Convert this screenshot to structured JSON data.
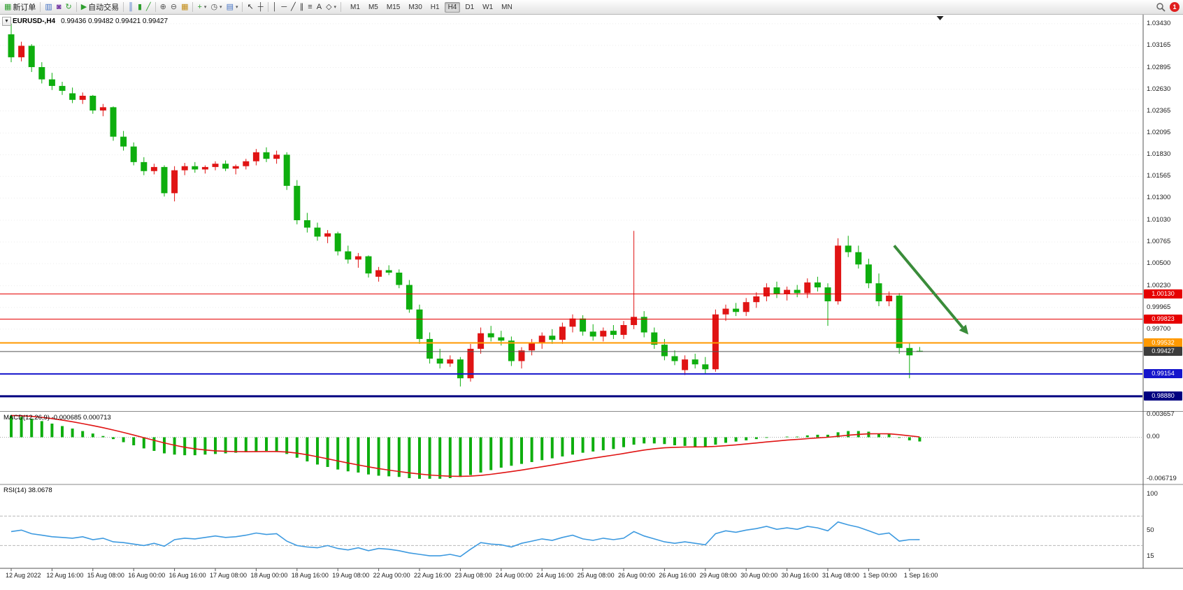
{
  "toolbar": {
    "items": [
      {
        "name": "new-order-button",
        "glyph": "▦",
        "color": "#2e9e2e",
        "label": "新订单"
      },
      {
        "separator": true
      },
      {
        "name": "charts-window-icon",
        "glyph": "▥",
        "color": "#4472c4"
      },
      {
        "name": "profile-icon",
        "glyph": "◙",
        "color": "#7030a0"
      },
      {
        "name": "refresh-icon",
        "glyph": "↻",
        "color": "#2e9e2e"
      },
      {
        "separator": true
      },
      {
        "name": "autotrade-button",
        "glyph": "▶",
        "color": "#2e9e2e",
        "label": "自动交易"
      },
      {
        "separator": true
      },
      {
        "name": "bar-chart-icon",
        "glyph": "║",
        "color": "#4472c4"
      },
      {
        "name": "candlestick-icon",
        "glyph": "▮",
        "color": "#2e9e2e"
      },
      {
        "name": "line-chart-icon",
        "glyph": "╱",
        "color": "#2e9e2e"
      },
      {
        "separator": true
      },
      {
        "name": "zoom-in-icon",
        "glyph": "⊕",
        "color": "#555555"
      },
      {
        "name": "zoom-out-icon",
        "glyph": "⊖",
        "color": "#555555"
      },
      {
        "name": "tile-windows-icon",
        "glyph": "▦",
        "color": "#c28a10"
      },
      {
        "separator": true
      },
      {
        "name": "indicators-icon",
        "glyph": "+",
        "color": "#2e9e2e",
        "dropdown": true
      },
      {
        "name": "periods-icon",
        "glyph": "◷",
        "color": "#555555",
        "dropdown": true
      },
      {
        "name": "templates-icon",
        "glyph": "▤",
        "color": "#4472c4",
        "dropdown": true
      },
      {
        "separator": true
      },
      {
        "name": "cursor-icon",
        "glyph": "↖",
        "color": "#333333"
      },
      {
        "name": "crosshair-icon",
        "glyph": "┼",
        "color": "#333333"
      },
      {
        "separator": true
      },
      {
        "name": "vertical-line-icon",
        "glyph": "│",
        "color": "#333333"
      },
      {
        "name": "horizontal-line-icon",
        "glyph": "─",
        "color": "#333333"
      },
      {
        "name": "trendline-icon",
        "glyph": "╱",
        "color": "#333333"
      },
      {
        "name": "channel-icon",
        "glyph": "∥",
        "color": "#333333"
      },
      {
        "name": "fibonacci-icon",
        "glyph": "≡",
        "color": "#333333"
      },
      {
        "name": "text-icon",
        "glyph": "A",
        "color": "#333333"
      },
      {
        "name": "arrows-icon",
        "glyph": "◇",
        "color": "#333333",
        "dropdown": true
      },
      {
        "separator": true
      }
    ],
    "timeframes": [
      "M1",
      "M5",
      "M15",
      "M30",
      "H1",
      "H4",
      "D1",
      "W1",
      "MN"
    ],
    "active_timeframe": "H4",
    "notification_count": "1"
  },
  "chart": {
    "symbol_label": "EURUSD-,H4",
    "quote": "0.99436 0.99482 0.99421 0.99427",
    "collapse_glyph": "▼"
  },
  "chart_data": {
    "type": "candlestick",
    "symbol": "EURUSD-",
    "timeframe": "H4",
    "bull_color": "#e01414",
    "bear_color": "#0eae0e",
    "price_range": [
      0.987,
      1.0354
    ],
    "price_axis_labels": [
      "1.03430",
      "1.03165",
      "1.02895",
      "1.02630",
      "1.02365",
      "1.02095",
      "1.01830",
      "1.01565",
      "1.01300",
      "1.01030",
      "1.00765",
      "1.00500",
      "1.00230",
      "0.99965",
      "0.99700"
    ],
    "time_labels": [
      "12 Aug 2022",
      "12 Aug 16:00",
      "15 Aug 08:00",
      "16 Aug 00:00",
      "16 Aug 16:00",
      "17 Aug 08:00",
      "18 Aug 00:00",
      "18 Aug 16:00",
      "19 Aug 08:00",
      "22 Aug 00:00",
      "22 Aug 16:00",
      "23 Aug 08:00",
      "24 Aug 00:00",
      "24 Aug 16:00",
      "25 Aug 08:00",
      "26 Aug 00:00",
      "26 Aug 16:00",
      "29 Aug 08:00",
      "30 Aug 00:00",
      "30 Aug 16:00",
      "31 Aug 08:00",
      "1 Sep 00:00",
      "1 Sep 16:00"
    ],
    "bars_per_label": 4,
    "ohlc": [
      [
        1.033,
        1.0343,
        1.0296,
        1.0302
      ],
      [
        1.0302,
        1.0321,
        1.0297,
        1.0316
      ],
      [
        1.0316,
        1.0318,
        1.0284,
        1.029
      ],
      [
        1.029,
        1.0296,
        1.027,
        1.0275
      ],
      [
        1.0275,
        1.0283,
        1.0262,
        1.0267
      ],
      [
        1.0267,
        1.0272,
        1.0256,
        1.0261
      ],
      [
        1.0258,
        1.0265,
        1.0246,
        1.025
      ],
      [
        1.025,
        1.0259,
        1.0245,
        1.0255
      ],
      [
        1.0255,
        1.0256,
        1.0233,
        1.0237
      ],
      [
        1.0237,
        1.0245,
        1.023,
        1.0241
      ],
      [
        1.0241,
        1.0242,
        1.02,
        1.0205
      ],
      [
        1.0205,
        1.0212,
        1.0188,
        1.0193
      ],
      [
        1.0193,
        1.0198,
        1.017,
        1.0174
      ],
      [
        1.0174,
        1.018,
        1.0158,
        1.0163
      ],
      [
        1.0163,
        1.0172,
        1.0159,
        1.0168
      ],
      [
        1.0168,
        1.017,
        1.0132,
        1.0136
      ],
      [
        1.0136,
        1.0169,
        1.0126,
        1.0164
      ],
      [
        1.0164,
        1.0173,
        1.0158,
        1.0169
      ],
      [
        1.0169,
        1.0174,
        1.0161,
        1.0165
      ],
      [
        1.0165,
        1.017,
        1.016,
        1.0168
      ],
      [
        1.0168,
        1.0175,
        1.0164,
        1.0172
      ],
      [
        1.0172,
        1.0176,
        1.0163,
        1.0166
      ],
      [
        1.0166,
        1.0171,
        1.0159,
        1.0169
      ],
      [
        1.0169,
        1.0178,
        1.0165,
        1.0175
      ],
      [
        1.0175,
        1.019,
        1.017,
        1.0186
      ],
      [
        1.0186,
        1.0192,
        1.0174,
        1.0178
      ],
      [
        1.0178,
        1.0188,
        1.0172,
        1.0183
      ],
      [
        1.0183,
        1.0186,
        1.014,
        1.0145
      ],
      [
        1.0145,
        1.0152,
        1.0098,
        1.0103
      ],
      [
        1.0103,
        1.0112,
        1.0088,
        1.0094
      ],
      [
        1.0094,
        1.01,
        1.0078,
        1.0083
      ],
      [
        1.0083,
        1.0091,
        1.0075,
        1.0087
      ],
      [
        1.0087,
        1.0089,
        1.006,
        1.0065
      ],
      [
        1.0065,
        1.0072,
        1.005,
        1.0055
      ],
      [
        1.0055,
        1.0063,
        1.0045,
        1.0059
      ],
      [
        1.0059,
        1.006,
        1.0033,
        1.0038
      ],
      [
        1.0034,
        1.0046,
        1.0028,
        1.0042
      ],
      [
        1.0042,
        1.0048,
        1.0036,
        1.0039
      ],
      [
        1.0039,
        1.0043,
        1.002,
        1.0024
      ],
      [
        1.0024,
        1.003,
        0.999,
        0.9994
      ],
      [
        0.9994,
        1.0,
        0.9952,
        0.9958
      ],
      [
        0.9958,
        0.9966,
        0.9928,
        0.9934
      ],
      [
        0.9934,
        0.9946,
        0.9922,
        0.9928
      ],
      [
        0.9928,
        0.9938,
        0.9924,
        0.9933
      ],
      [
        0.9933,
        0.9936,
        0.99,
        0.991
      ],
      [
        0.991,
        0.9952,
        0.9906,
        0.9946
      ],
      [
        0.9946,
        0.9972,
        0.994,
        0.9965
      ],
      [
        0.9965,
        0.9974,
        0.9955,
        0.996
      ],
      [
        0.996,
        0.9968,
        0.995,
        0.9956
      ],
      [
        0.9956,
        0.9961,
        0.9925,
        0.9931
      ],
      [
        0.9931,
        0.9948,
        0.9922,
        0.9944
      ],
      [
        0.9944,
        0.9958,
        0.9938,
        0.9953
      ],
      [
        0.9953,
        0.9966,
        0.9946,
        0.9962
      ],
      [
        0.9962,
        0.997,
        0.9952,
        0.9957
      ],
      [
        0.9957,
        0.9978,
        0.9952,
        0.9973
      ],
      [
        0.9973,
        0.9988,
        0.9966,
        0.9983
      ],
      [
        0.9983,
        0.9987,
        0.9962,
        0.9967
      ],
      [
        0.9967,
        0.9976,
        0.9956,
        0.9961
      ],
      [
        0.9961,
        0.9972,
        0.9955,
        0.9968
      ],
      [
        0.9968,
        0.9975,
        0.9958,
        0.9963
      ],
      [
        0.9963,
        0.998,
        0.9958,
        0.9975
      ],
      [
        0.9975,
        1.009,
        0.997,
        0.9985
      ],
      [
        0.9985,
        0.9992,
        0.996,
        0.9966
      ],
      [
        0.9966,
        0.9972,
        0.9946,
        0.9951
      ],
      [
        0.9951,
        0.9958,
        0.9932,
        0.9937
      ],
      [
        0.9937,
        0.9944,
        0.9926,
        0.9931
      ],
      [
        0.992,
        0.9938,
        0.9914,
        0.9933
      ],
      [
        0.9933,
        0.994,
        0.9922,
        0.9927
      ],
      [
        0.9927,
        0.9936,
        0.9916,
        0.9921
      ],
      [
        0.9921,
        0.9994,
        0.9918,
        0.9988
      ],
      [
        0.9988,
        1.0,
        0.998,
        0.9995
      ],
      [
        0.9995,
        1.0002,
        0.9986,
        0.9991
      ],
      [
        0.9991,
        1.0008,
        0.9986,
        1.0003
      ],
      [
        1.0003,
        1.0015,
        0.9996,
        1.001
      ],
      [
        1.001,
        1.0026,
        1.0004,
        1.0021
      ],
      [
        1.0021,
        1.0028,
        1.0008,
        1.0013
      ],
      [
        1.0013,
        1.0022,
        1.0005,
        1.0018
      ],
      [
        1.0018,
        1.0024,
        1.0009,
        1.0014
      ],
      [
        1.0014,
        1.0032,
        1.0008,
        1.0027
      ],
      [
        1.0027,
        1.0034,
        1.0016,
        1.0021
      ],
      [
        1.0021,
        1.0026,
        0.9974,
        1.0004
      ],
      [
        1.0004,
        1.0081,
        1.0,
        1.0072
      ],
      [
        1.0072,
        1.0084,
        1.0058,
        1.0064
      ],
      [
        1.0064,
        1.0072,
        1.0044,
        1.0049
      ],
      [
        1.0049,
        1.0056,
        1.002,
        1.0026
      ],
      [
        1.0026,
        1.0038,
        0.9998,
        1.0004
      ],
      [
        1.0004,
        1.0016,
        0.9998,
        1.0011
      ],
      [
        1.0011,
        1.0014,
        0.994,
        0.9947
      ],
      [
        0.9947,
        0.9953,
        0.991,
        0.9938
      ],
      [
        0.99436,
        0.99482,
        0.99421,
        0.99427
      ]
    ],
    "hlines": [
      {
        "price": 1.0013,
        "label": "1.00130",
        "color": "#e60000",
        "width": 1
      },
      {
        "price": 0.99823,
        "label": "0.99823",
        "color": "#e60000",
        "width": 1
      },
      {
        "price": 0.99532,
        "label": "0.99532",
        "color": "#ff9900",
        "width": 2
      },
      {
        "price": 0.99154,
        "label": "0.99154",
        "color": "#1515cc",
        "width": 2
      },
      {
        "price": 0.9888,
        "label": "0.98880",
        "color": "#000080",
        "width": 3
      }
    ],
    "current_price": {
      "price": 0.99427,
      "label": "0.99427",
      "badge_color": "#3c3c3c",
      "line_color": "#555555"
    },
    "indicators": {
      "macd": {
        "label": "MACD(12,26,9) -0.000685 0.000713",
        "axis": [
          "0.003657",
          "0.00",
          "-0.006719"
        ],
        "range": [
          -0.0075,
          0.004
        ],
        "hist_color": "#0eae0e",
        "signal_color": "#e01414",
        "values": [
          0.0035,
          0.0033,
          0.003,
          0.0026,
          0.0022,
          0.0018,
          0.0014,
          0.001,
          0.0006,
          0.0002,
          -0.0003,
          -0.0008,
          -0.0013,
          -0.0018,
          -0.0022,
          -0.0026,
          -0.0028,
          -0.0029,
          -0.0029,
          -0.0028,
          -0.0027,
          -0.0026,
          -0.0025,
          -0.0024,
          -0.0023,
          -0.0022,
          -0.0023,
          -0.0027,
          -0.0033,
          -0.0039,
          -0.0044,
          -0.0048,
          -0.0052,
          -0.0055,
          -0.0057,
          -0.006,
          -0.0062,
          -0.0063,
          -0.0064,
          -0.0066,
          -0.0067,
          -0.0067,
          -0.0067,
          -0.0066,
          -0.0064,
          -0.0061,
          -0.0057,
          -0.0053,
          -0.0049,
          -0.0046,
          -0.0043,
          -0.004,
          -0.0037,
          -0.0034,
          -0.0031,
          -0.0028,
          -0.0025,
          -0.0023,
          -0.0021,
          -0.0019,
          -0.0016,
          -0.0012,
          -0.001,
          -0.001,
          -0.0011,
          -0.0013,
          -0.0014,
          -0.0015,
          -0.0015,
          -0.0012,
          -0.0009,
          -0.0007,
          -0.0005,
          -0.0003,
          -0.0001,
          0.0,
          0.0001,
          0.0001,
          0.0003,
          0.0004,
          0.0004,
          0.0008,
          0.001,
          0.001,
          0.0009,
          0.0006,
          0.0005,
          -0.0001,
          -0.0005,
          -0.000685
        ]
      },
      "rsi": {
        "label": "RSI(14) 38.0678",
        "axis": [
          "100",
          "50",
          "15"
        ],
        "range": [
          0,
          112
        ],
        "levels": [
          70,
          30
        ],
        "color": "#3d9ae0",
        "values": [
          49,
          51,
          46,
          44,
          42,
          41,
          40,
          42,
          38,
          40,
          35,
          34,
          32,
          30,
          33,
          29,
          38,
          40,
          39,
          41,
          43,
          41,
          42,
          44,
          47,
          45,
          46,
          36,
          30,
          28,
          27,
          30,
          26,
          24,
          27,
          23,
          26,
          25,
          23,
          20,
          18,
          16,
          16,
          18,
          15,
          25,
          34,
          32,
          31,
          28,
          33,
          36,
          39,
          37,
          41,
          44,
          39,
          37,
          40,
          38,
          40,
          49,
          43,
          39,
          35,
          33,
          35,
          33,
          31,
          46,
          50,
          48,
          51,
          53,
          56,
          52,
          54,
          52,
          56,
          54,
          50,
          62,
          58,
          55,
          50,
          45,
          47,
          36,
          38,
          38.07
        ]
      }
    },
    "annotation_arrow": {
      "from": {
        "bar": 86.5,
        "price": 1.0072
      },
      "to": {
        "bar": 93.2,
        "price": 0.9972
      },
      "color": "#3a8c3a"
    },
    "shift_marker_bar": 91
  }
}
